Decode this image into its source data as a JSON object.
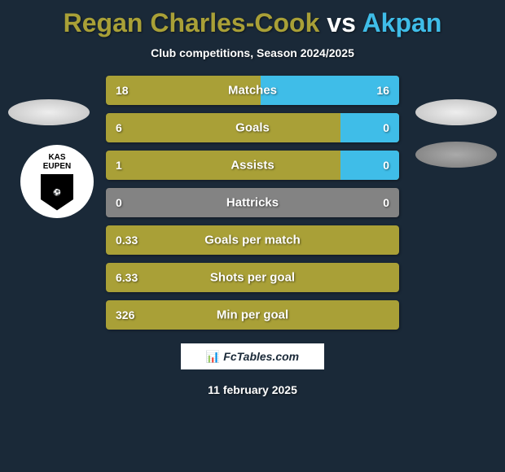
{
  "title": {
    "player1": "Regan Charles-Cook",
    "vs": " vs ",
    "player2": "Akpan",
    "player1_color": "#a9a037",
    "player2_color": "#3fbde8"
  },
  "subtitle": "Club competitions, Season 2024/2025",
  "club_logo": {
    "text_top": "KAS",
    "text_bottom": "EUPEN"
  },
  "stats": [
    {
      "label": "Matches",
      "left_value": "18",
      "right_value": "16",
      "left_width_pct": 52.9,
      "right_width_pct": 47.1,
      "bg_color": "#a9a037",
      "right_bar_color": "#3fbde8"
    },
    {
      "label": "Goals",
      "left_value": "6",
      "right_value": "0",
      "left_width_pct": 80,
      "right_width_pct": 20,
      "bg_color": "#a9a037",
      "right_bar_color": "#3fbde8"
    },
    {
      "label": "Assists",
      "left_value": "1",
      "right_value": "0",
      "left_width_pct": 80,
      "right_width_pct": 20,
      "bg_color": "#a9a037",
      "right_bar_color": "#3fbde8"
    },
    {
      "label": "Hattricks",
      "left_value": "0",
      "right_value": "0",
      "left_width_pct": 100,
      "right_width_pct": 0,
      "bg_color": "#838383",
      "right_bar_color": "#3fbde8"
    },
    {
      "label": "Goals per match",
      "left_value": "0.33",
      "right_value": "",
      "left_width_pct": 100,
      "right_width_pct": 0,
      "bg_color": "#a9a037",
      "right_bar_color": "#3fbde8"
    },
    {
      "label": "Shots per goal",
      "left_value": "6.33",
      "right_value": "",
      "left_width_pct": 100,
      "right_width_pct": 0,
      "bg_color": "#a9a037",
      "right_bar_color": "#3fbde8"
    },
    {
      "label": "Min per goal",
      "left_value": "326",
      "right_value": "",
      "left_width_pct": 100,
      "right_width_pct": 0,
      "bg_color": "#a9a037",
      "right_bar_color": "#3fbde8"
    }
  ],
  "footer": {
    "brand": "FcTables.com",
    "date": "11 february 2025"
  },
  "colors": {
    "background": "#1a2938",
    "text": "#ffffff"
  }
}
